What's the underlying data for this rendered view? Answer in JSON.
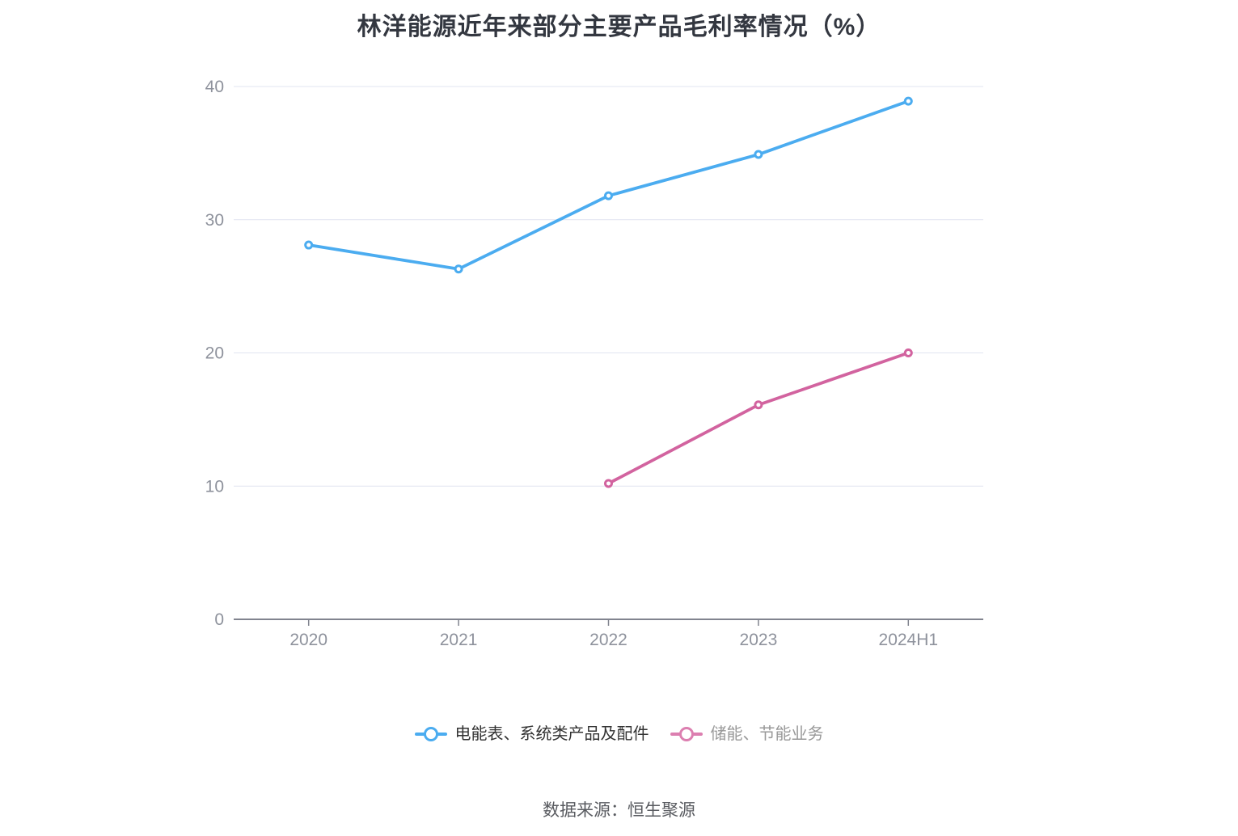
{
  "title": "林洋能源近年来部分主要产品毛利率情况（%）",
  "source_note": "数据来源：恒生聚源",
  "colors": {
    "background": "#ffffff",
    "grid_line": "#e1e4f0",
    "axis_line": "#81848f",
    "axis_label": "#8e929c",
    "title_text": "#333740",
    "source_text": "#595b60"
  },
  "legend": {
    "items": [
      {
        "label": "电能表、系统类产品及配件",
        "marker_color": "#4bacf0",
        "label_color": "#333333"
      },
      {
        "label": "储能、节能业务",
        "marker_color": "#dc7fb0",
        "label_color": "#999999"
      }
    ]
  },
  "chart_data": {
    "type": "line",
    "categories": [
      "2020",
      "2021",
      "2022",
      "2023",
      "2024H1"
    ],
    "series": [
      {
        "name": "电能表、系统类产品及配件",
        "color": "#4bacf0",
        "values": [
          28.1,
          26.3,
          31.8,
          34.9,
          38.9
        ]
      },
      {
        "name": "储能、节能业务",
        "color": "#d2639f",
        "values": [
          null,
          null,
          10.2,
          16.1,
          20.0
        ]
      }
    ],
    "title": "林洋能源近年来部分主要产品毛利率情况（%）",
    "xlabel": "",
    "ylabel": "",
    "ylim": [
      0,
      40
    ],
    "yticks": [
      0,
      10,
      20,
      30,
      40
    ],
    "grid": true,
    "legend_position": "bottom",
    "marker_style": "hollow-circle"
  }
}
